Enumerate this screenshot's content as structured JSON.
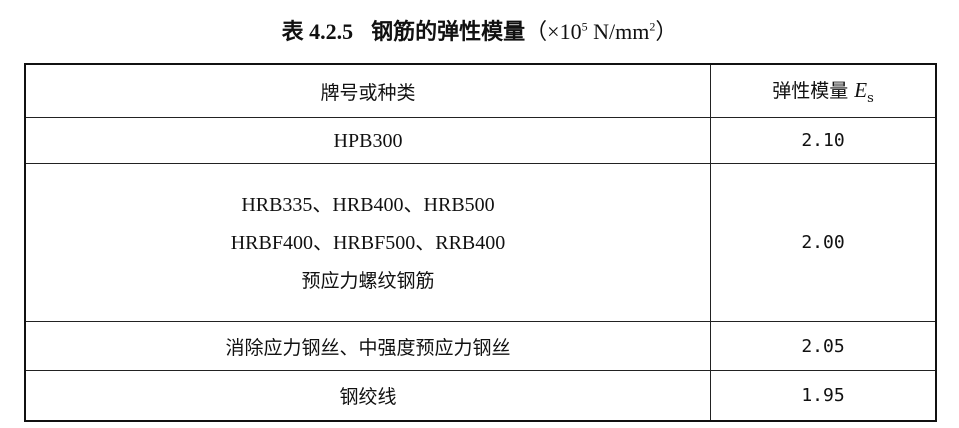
{
  "title": {
    "number": "表 4.2.5",
    "name": "钢筋的弹性模量",
    "unit_prefix": "（×10",
    "unit_exp": "5",
    "unit_suffix": " N/mm",
    "unit_exp2": "2",
    "unit_close": "）"
  },
  "header": {
    "col1": "牌号或种类",
    "col2": "弹性模量 ",
    "col2_symbol": "E",
    "col2_sub": "s"
  },
  "rows": [
    {
      "lines": [
        "HPB300"
      ],
      "value": "2.10"
    },
    {
      "lines": [
        "HRB335、HRB400、HRB500",
        "HRBF400、HRBF500、RRB400",
        "预应力螺纹钢筋"
      ],
      "value": "2.00"
    },
    {
      "lines": [
        "消除应力钢丝、中强度预应力钢丝"
      ],
      "value": "2.05"
    },
    {
      "lines": [
        "钢绞线"
      ],
      "value": "1.95"
    }
  ]
}
